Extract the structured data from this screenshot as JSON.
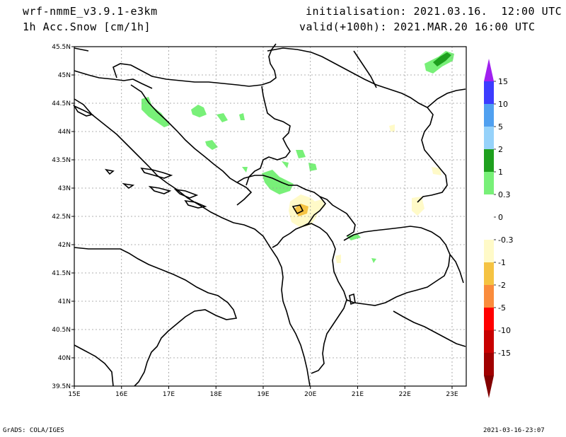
{
  "header": {
    "model": "wrf-nmmE_v3.9.1-e3km",
    "field": "1h Acc.Snow [cm/1h]",
    "init": "initialisation: 2021.03.16.  12:00 UTC",
    "valid": "valid(+100h): 2021.MAR.20 16:00 UTC"
  },
  "map": {
    "lon_range": [
      15,
      23.3
    ],
    "lat_range": [
      39.5,
      45.5
    ],
    "lon_ticks": [
      "15E",
      "16E",
      "17E",
      "18E",
      "19E",
      "20E",
      "21E",
      "22E",
      "23E"
    ],
    "lat_ticks": [
      "45.5N",
      "45N",
      "44.5N",
      "44N",
      "43.5N",
      "43N",
      "42.5N",
      "42N",
      "41.5N",
      "41N",
      "40.5N",
      "40N",
      "39.5N"
    ],
    "grid": true
  },
  "colorbar": {
    "labels": [
      "15",
      "10",
      "5",
      "2",
      "1",
      "0.3",
      "0",
      "-0.3",
      "-1",
      "-2",
      "-5",
      "-10",
      "-15"
    ],
    "colors": [
      "#a020f0",
      "#3c3cff",
      "#50a0f0",
      "#96d2fa",
      "#1ea01e",
      "#78f078",
      "#ffffff",
      "#ffffff",
      "#fffac8",
      "#f5c342",
      "#fa8c3c",
      "#ff0000",
      "#c80000",
      "#a00000",
      "#820000"
    ]
  },
  "footer": {
    "left": "GrADS: COLA/IGES",
    "right": "2021-03-16-23:07"
  }
}
